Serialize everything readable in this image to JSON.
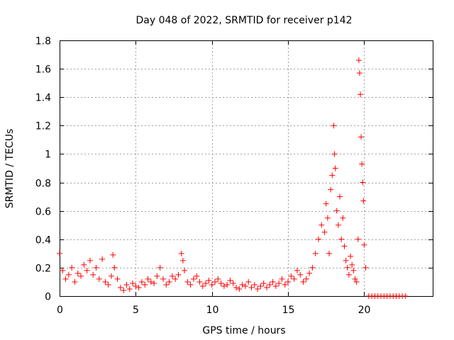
{
  "chart_data": {
    "type": "scatter",
    "title": "Day 048 of 2022, SRMTID for receiver p142",
    "xlabel": "GPS time / hours",
    "ylabel": "SRMTID / TECUs",
    "xlim": [
      0,
      24.5
    ],
    "ylim": [
      0,
      1.8
    ],
    "x_ticks": [
      0,
      5,
      10,
      15,
      20
    ],
    "x_tick_labels": [
      "0",
      "5",
      "10",
      "15",
      "20"
    ],
    "y_ticks": [
      0,
      0.2,
      0.4,
      0.6,
      0.8,
      1.0,
      1.2,
      1.4,
      1.6,
      1.8
    ],
    "y_tick_labels": [
      "0",
      "0.2",
      "0.4",
      "0.6",
      "0.8",
      "1",
      "1.2",
      "1.4",
      "1.6",
      "1.8"
    ],
    "grid": true,
    "marker": "+",
    "marker_color": "#ff0000",
    "series": [
      {
        "name": "SRMTID",
        "x": [
          0.0,
          0.2,
          0.4,
          0.6,
          0.8,
          1.0,
          1.2,
          1.4,
          1.6,
          1.8,
          2.0,
          2.2,
          2.4,
          2.6,
          2.8,
          3.0,
          3.2,
          3.4,
          3.5,
          3.6,
          3.8,
          4.0,
          4.2,
          4.4,
          4.6,
          4.8,
          5.0,
          5.2,
          5.4,
          5.6,
          5.8,
          6.0,
          6.2,
          6.4,
          6.6,
          6.8,
          7.0,
          7.2,
          7.4,
          7.6,
          7.8,
          8.0,
          8.1,
          8.2,
          8.4,
          8.6,
          8.8,
          9.0,
          9.2,
          9.4,
          9.6,
          9.8,
          10.0,
          10.2,
          10.4,
          10.6,
          10.8,
          11.0,
          11.2,
          11.4,
          11.6,
          11.8,
          12.0,
          12.2,
          12.4,
          12.6,
          12.8,
          13.0,
          13.2,
          13.4,
          13.6,
          13.8,
          14.0,
          14.2,
          14.4,
          14.6,
          14.8,
          15.0,
          15.2,
          15.4,
          15.6,
          15.8,
          16.0,
          16.2,
          16.4,
          16.6,
          16.8,
          17.0,
          17.2,
          17.4,
          17.5,
          17.6,
          17.7,
          17.8,
          17.9,
          18.0,
          18.05,
          18.1,
          18.2,
          18.3,
          18.4,
          18.5,
          18.6,
          18.7,
          18.8,
          18.9,
          19.0,
          19.1,
          19.2,
          19.3,
          19.4,
          19.5,
          19.6,
          19.65,
          19.7,
          19.75,
          19.8,
          19.85,
          19.9,
          19.95,
          20.0,
          20.1,
          20.3,
          20.5,
          20.7,
          20.9,
          21.1,
          21.3,
          21.5,
          21.7,
          21.9,
          22.1,
          22.3,
          22.5,
          22.7
        ],
        "y": [
          0.3,
          0.18,
          0.12,
          0.15,
          0.2,
          0.1,
          0.16,
          0.14,
          0.22,
          0.18,
          0.25,
          0.15,
          0.2,
          0.12,
          0.26,
          0.1,
          0.08,
          0.14,
          0.29,
          0.2,
          0.12,
          0.06,
          0.04,
          0.08,
          0.05,
          0.09,
          0.07,
          0.06,
          0.1,
          0.08,
          0.12,
          0.1,
          0.09,
          0.14,
          0.2,
          0.12,
          0.08,
          0.1,
          0.14,
          0.12,
          0.15,
          0.3,
          0.25,
          0.18,
          0.1,
          0.08,
          0.12,
          0.14,
          0.1,
          0.07,
          0.09,
          0.11,
          0.08,
          0.1,
          0.12,
          0.09,
          0.07,
          0.08,
          0.11,
          0.09,
          0.06,
          0.05,
          0.08,
          0.07,
          0.1,
          0.06,
          0.08,
          0.05,
          0.07,
          0.09,
          0.06,
          0.08,
          0.1,
          0.07,
          0.09,
          0.12,
          0.08,
          0.1,
          0.14,
          0.12,
          0.18,
          0.15,
          0.1,
          0.12,
          0.16,
          0.2,
          0.3,
          0.4,
          0.5,
          0.45,
          0.65,
          0.55,
          0.3,
          0.75,
          0.85,
          1.2,
          1.0,
          0.9,
          0.6,
          0.5,
          0.7,
          0.4,
          0.55,
          0.35,
          0.25,
          0.2,
          0.15,
          0.28,
          0.22,
          0.18,
          0.12,
          0.1,
          0.4,
          1.66,
          1.57,
          1.42,
          1.12,
          0.93,
          0.8,
          0.67,
          0.36,
          0.2,
          0.0,
          0.0,
          0.0,
          0.0,
          0.0,
          0.0,
          0.0,
          0.0,
          0.0,
          0.0,
          0.0,
          0.0,
          0.0
        ]
      }
    ]
  }
}
